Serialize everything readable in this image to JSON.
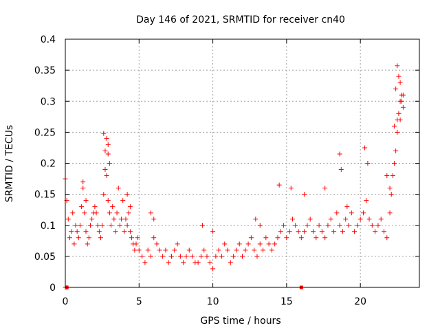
{
  "chart_data": {
    "type": "scatter",
    "title": "Day 146 of 2021, SRMTID for receiver cn40",
    "xlabel": "GPS time / hours",
    "ylabel": "SRMTID / TECUs",
    "xlim": [
      0,
      24
    ],
    "ylim": [
      0,
      0.4
    ],
    "x_ticks": [
      0,
      5,
      10,
      15,
      20
    ],
    "x_tick_labels": [
      "0",
      "5",
      "10",
      "15",
      "20"
    ],
    "y_ticks": [
      0,
      0.05,
      0.1,
      0.15,
      0.2,
      0.25,
      0.3,
      0.35,
      0.4
    ],
    "y_tick_labels": [
      "0",
      "0.05",
      "0.1",
      "0.15",
      "0.2",
      "0.25",
      "0.3",
      "0.35",
      "0.4"
    ],
    "grid": true,
    "marker": "+",
    "color": "#ff0000",
    "series": [
      {
        "name": "SRMTID",
        "x": [
          0.0,
          0.1,
          0.2,
          0.3,
          0.4,
          0.5,
          0.6,
          0.7,
          0.8,
          0.9,
          1.0,
          1.1,
          1.2,
          1.3,
          1.4,
          1.5,
          1.6,
          1.7,
          1.8,
          1.9,
          2.0,
          2.1,
          2.2,
          2.3,
          2.4,
          2.5,
          2.6,
          2.7,
          2.8,
          2.9,
          3.0,
          3.1,
          3.2,
          3.3,
          3.4,
          3.5,
          3.6,
          3.7,
          3.8,
          3.9,
          4.0,
          4.1,
          4.2,
          4.3,
          4.4,
          4.5,
          4.6,
          4.7,
          4.8,
          4.9,
          5.0,
          5.2,
          5.4,
          5.6,
          5.8,
          6.0,
          6.2,
          6.4,
          6.6,
          6.8,
          7.0,
          7.2,
          7.4,
          7.6,
          7.8,
          8.0,
          8.2,
          8.4,
          8.6,
          8.8,
          9.0,
          9.2,
          9.4,
          9.6,
          9.8,
          10.0,
          10.2,
          10.4,
          10.6,
          10.8,
          11.0,
          11.2,
          11.4,
          11.6,
          11.8,
          12.0,
          12.2,
          12.4,
          12.6,
          12.8,
          13.0,
          13.2,
          13.4,
          13.6,
          13.8,
          14.0,
          14.2,
          14.4,
          14.6,
          14.8,
          15.0,
          15.2,
          15.4,
          15.6,
          15.8,
          16.0,
          16.2,
          16.4,
          16.6,
          16.8,
          17.0,
          17.2,
          17.4,
          17.6,
          17.8,
          18.0,
          18.2,
          18.4,
          18.6,
          18.8,
          19.0,
          19.2,
          19.4,
          19.6,
          19.8,
          20.0,
          20.2,
          20.4,
          20.6,
          20.8,
          21.0,
          21.2,
          21.4,
          21.6,
          21.8,
          22.0,
          22.1,
          22.2,
          22.3,
          22.4,
          22.5,
          22.6,
          22.7,
          22.8,
          22.9,
          2.6,
          2.8,
          2.9,
          3.0,
          2.7,
          2.9,
          1.2,
          1.4,
          4.2,
          4.4,
          14.5,
          18.6,
          18.7,
          20.3,
          20.5,
          21.8,
          22.0,
          0.0,
          0.1,
          22.5,
          22.6,
          22.7,
          22.4,
          22.8,
          22.3,
          22.9,
          22.6,
          22.5,
          22.7,
          17.6,
          19.1,
          5.8,
          6.0,
          9.3,
          10.0,
          13.2,
          12.9,
          15.3,
          16.2
        ],
        "y": [
          0.175,
          0.14,
          0.11,
          0.08,
          0.09,
          0.12,
          0.07,
          0.1,
          0.09,
          0.08,
          0.1,
          0.13,
          0.16,
          0.12,
          0.09,
          0.07,
          0.08,
          0.1,
          0.11,
          0.12,
          0.13,
          0.12,
          0.1,
          0.09,
          0.08,
          0.1,
          0.15,
          0.22,
          0.18,
          0.14,
          0.12,
          0.1,
          0.13,
          0.11,
          0.09,
          0.12,
          0.16,
          0.1,
          0.11,
          0.14,
          0.09,
          0.11,
          0.1,
          0.12,
          0.09,
          0.08,
          0.07,
          0.06,
          0.07,
          0.08,
          0.06,
          0.05,
          0.04,
          0.06,
          0.05,
          0.08,
          0.07,
          0.06,
          0.05,
          0.06,
          0.04,
          0.05,
          0.06,
          0.07,
          0.05,
          0.04,
          0.05,
          0.06,
          0.05,
          0.04,
          0.04,
          0.05,
          0.06,
          0.05,
          0.04,
          0.03,
          0.05,
          0.06,
          0.05,
          0.07,
          0.06,
          0.04,
          0.05,
          0.06,
          0.07,
          0.05,
          0.06,
          0.07,
          0.08,
          0.06,
          0.05,
          0.07,
          0.06,
          0.08,
          0.07,
          0.06,
          0.07,
          0.08,
          0.09,
          0.1,
          0.08,
          0.09,
          0.11,
          0.1,
          0.09,
          0.08,
          0.09,
          0.1,
          0.11,
          0.09,
          0.08,
          0.1,
          0.09,
          0.08,
          0.1,
          0.11,
          0.09,
          0.12,
          0.1,
          0.09,
          0.11,
          0.1,
          0.12,
          0.09,
          0.1,
          0.11,
          0.12,
          0.14,
          0.11,
          0.1,
          0.09,
          0.1,
          0.11,
          0.09,
          0.08,
          0.12,
          0.15,
          0.18,
          0.2,
          0.22,
          0.25,
          0.28,
          0.27,
          0.3,
          0.31,
          0.248,
          0.24,
          0.23,
          0.2,
          0.19,
          0.215,
          0.17,
          0.14,
          0.15,
          0.13,
          0.165,
          0.215,
          0.19,
          0.225,
          0.2,
          0.18,
          0.16,
          0.0,
          0.0,
          0.357,
          0.34,
          0.33,
          0.32,
          0.31,
          0.26,
          0.29,
          0.28,
          0.27,
          0.3,
          0.16,
          0.13,
          0.12,
          0.11,
          0.1,
          0.09,
          0.1,
          0.11,
          0.16,
          0.15
        ]
      }
    ],
    "axis_markers_x": [
      0.1,
      16.0
    ]
  }
}
